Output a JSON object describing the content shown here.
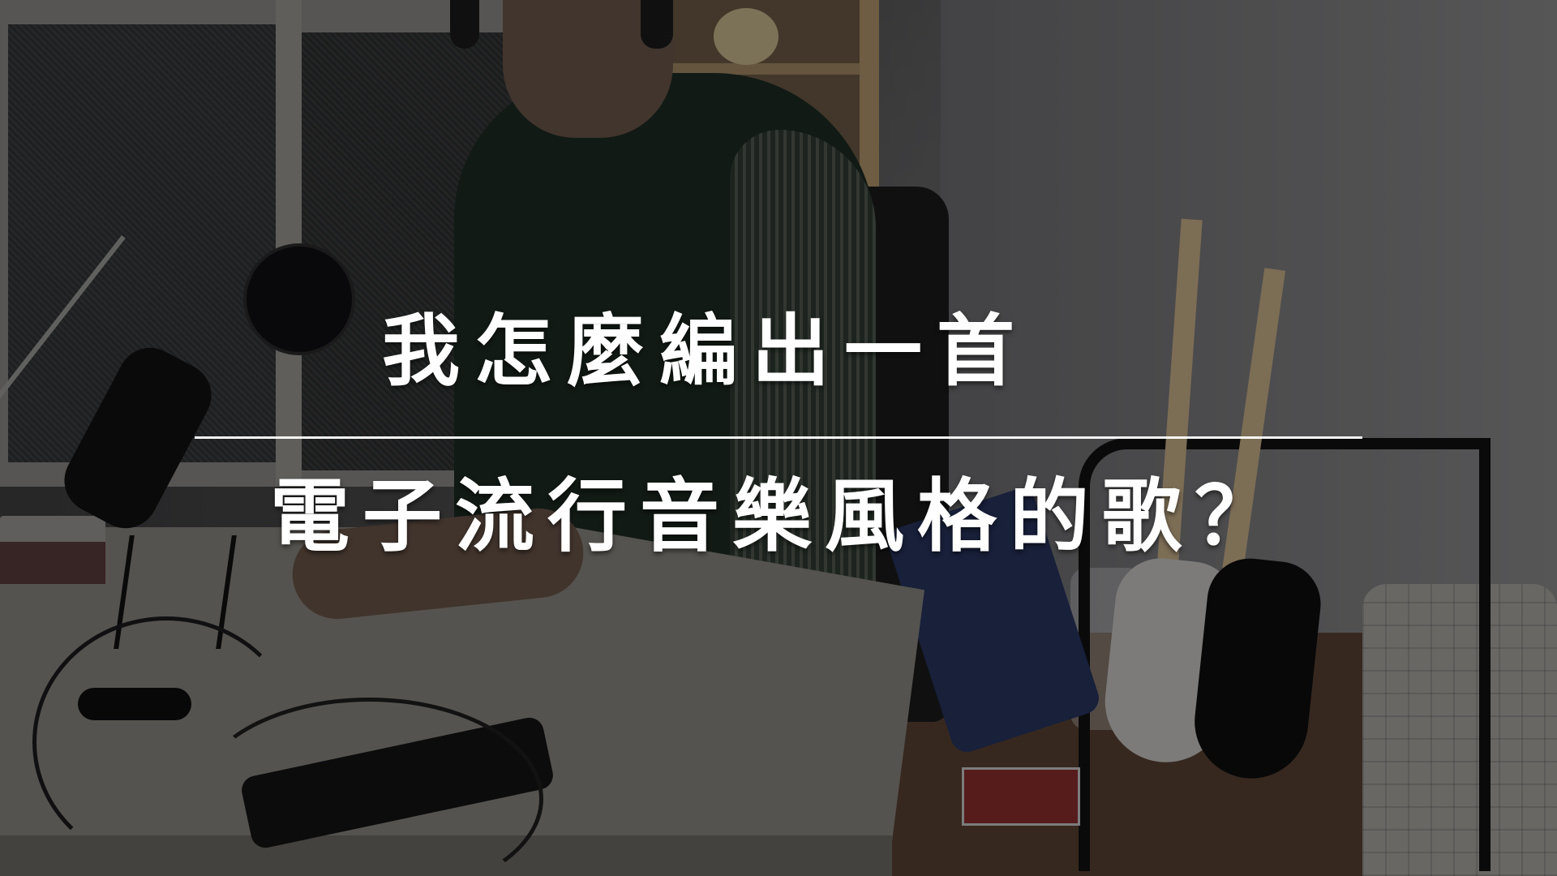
{
  "title": {
    "line1": "我怎麼編出一首",
    "line2": "電子流行音樂風格的歌？"
  },
  "colors": {
    "title_text": "#ffffff",
    "divider": "#ffffff",
    "overlay": "rgba(0,0,0,0.38)"
  }
}
